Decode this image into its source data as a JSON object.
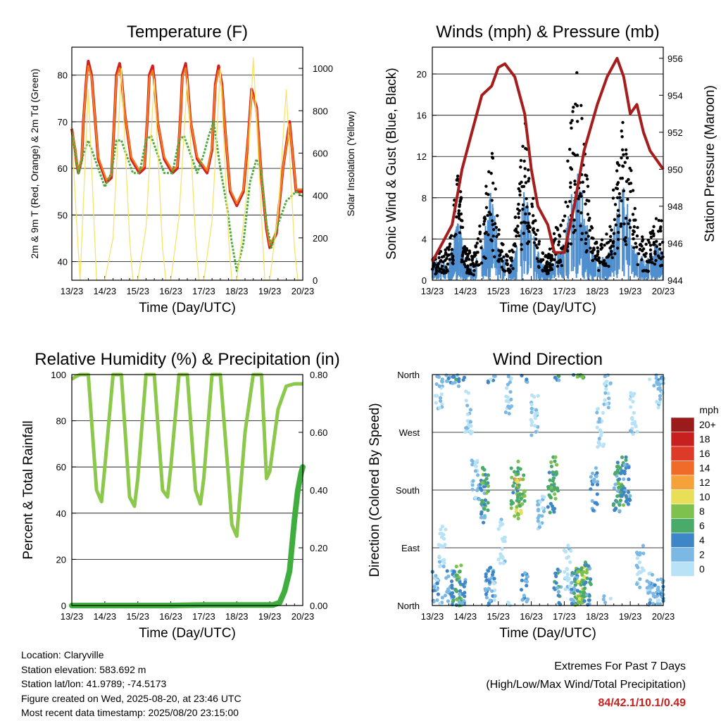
{
  "chart_data": [
    {
      "type": "line",
      "title": "Temperature (F)",
      "xlabel": "Time (Day/UTC)",
      "ylabel": "2m & 9m T (Red, Orange) & 2m Td (Green)",
      "ylabel_right": "Solar Insolation (Yellow)",
      "x_ticks": [
        "13/23",
        "14/23",
        "15/23",
        "16/23",
        "17/23",
        "18/23",
        "19/23",
        "20/23"
      ],
      "ylim": [
        36,
        86
      ],
      "y_ticks": [
        40,
        50,
        60,
        70,
        80
      ],
      "ylim_right": [
        0,
        1100
      ],
      "y_ticks_right": [
        0,
        200,
        400,
        600,
        800,
        1000
      ],
      "grid": true,
      "series": [
        {
          "color": "#d42020",
          "x": [
            0,
            0.05,
            0.1,
            0.15,
            0.2,
            0.3,
            0.35,
            0.45,
            0.5,
            0.6,
            0.8,
            1.05,
            1.2,
            1.3,
            1.35,
            1.45,
            1.5,
            1.6,
            1.8,
            2.05,
            2.2,
            2.3,
            2.35,
            2.45,
            2.5,
            2.6,
            2.8,
            3.05,
            3.2,
            3.3,
            3.35,
            3.45,
            3.5,
            3.6,
            3.8,
            4.1,
            4.25,
            4.35,
            4.45,
            4.55,
            4.65,
            4.8,
            5.0,
            5.2,
            5.35,
            5.45,
            5.6,
            5.75,
            5.9,
            6.0,
            6.2,
            6.4,
            6.6,
            6.8,
            7.0
          ],
          "values": [
            68.5,
            66,
            64,
            61,
            59,
            62,
            70,
            80,
            83,
            80,
            62,
            57,
            58,
            72,
            80,
            82.5,
            80,
            72,
            62,
            59,
            60,
            72,
            80,
            82,
            79,
            70,
            62,
            59,
            60,
            72,
            80,
            82.5,
            79,
            70,
            62,
            59,
            64,
            78,
            82,
            78,
            68,
            55,
            52,
            55,
            67,
            77,
            73,
            58,
            47,
            43,
            46,
            60,
            70,
            55,
            55
          ]
        },
        {
          "color": "#f07a20",
          "x": [
            0,
            0.05,
            0.1,
            0.15,
            0.2,
            0.3,
            0.35,
            0.45,
            0.5,
            0.6,
            0.8,
            1.05,
            1.2,
            1.3,
            1.35,
            1.45,
            1.5,
            1.6,
            1.8,
            2.05,
            2.2,
            2.3,
            2.35,
            2.45,
            2.5,
            2.6,
            2.8,
            3.05,
            3.2,
            3.3,
            3.35,
            3.45,
            3.5,
            3.6,
            3.8,
            4.1,
            4.25,
            4.35,
            4.45,
            4.55,
            4.65,
            4.8,
            5.0,
            5.2,
            5.35,
            5.45,
            5.6,
            5.75,
            5.9,
            6.0,
            6.2,
            6.4,
            6.6,
            6.8,
            7.0
          ],
          "values": [
            68.5,
            66.5,
            64.5,
            61.5,
            59.5,
            62.5,
            70,
            79.5,
            82,
            79.5,
            62.5,
            57.5,
            58.5,
            72,
            79.5,
            81.5,
            79.5,
            72,
            62.5,
            59.5,
            60.5,
            72,
            79.5,
            81,
            78.5,
            70,
            62.5,
            59.5,
            60.5,
            72,
            79.5,
            81.5,
            78.5,
            70,
            62.5,
            59.5,
            64.5,
            77.5,
            81,
            77.5,
            68,
            55.5,
            52.5,
            55.5,
            67,
            76.5,
            72.5,
            58,
            47.5,
            43.5,
            46.5,
            60,
            69.5,
            55.5,
            55.5
          ]
        },
        {
          "color": "#4aad3a",
          "x": [
            0,
            0.2,
            0.35,
            0.5,
            0.65,
            0.8,
            1.0,
            1.2,
            1.35,
            1.5,
            1.7,
            1.85,
            2.05,
            2.25,
            2.4,
            2.6,
            2.8,
            3.05,
            3.25,
            3.4,
            3.6,
            3.8,
            4.0,
            4.15,
            4.3,
            4.5,
            4.7,
            4.85,
            5.0,
            5.2,
            5.4,
            5.6,
            5.75,
            5.9,
            6.05,
            6.25,
            6.5,
            6.8,
            7.0
          ],
          "values": [
            68,
            59,
            63,
            66,
            63,
            60,
            56,
            59,
            66,
            66,
            62,
            59,
            59,
            66,
            67,
            63,
            59,
            59,
            66,
            67,
            63,
            59,
            63,
            67,
            70,
            60,
            52,
            44,
            38,
            44,
            57,
            62,
            59,
            48,
            43,
            48,
            53,
            55,
            54
          ]
        },
        {
          "color": "#f7e36a",
          "axis": "right",
          "x": [
            0,
            0.1,
            0.25,
            0.5,
            0.75,
            0.85,
            1.0,
            1.25,
            1.5,
            1.75,
            1.85,
            2.0,
            2.25,
            2.5,
            2.75,
            2.85,
            3.0,
            3.25,
            3.5,
            3.75,
            3.85,
            4.0,
            4.25,
            4.5,
            4.75,
            4.85,
            5.0,
            5.3,
            5.5,
            5.75,
            5.85,
            6.0,
            6.25,
            6.5,
            6.75,
            6.85,
            7.0
          ],
          "values": [
            700,
            400,
            0,
            900,
            0,
            0,
            0,
            200,
            1000,
            200,
            0,
            0,
            250,
            950,
            150,
            0,
            0,
            300,
            950,
            200,
            0,
            0,
            280,
            1000,
            200,
            0,
            0,
            400,
            1050,
            300,
            0,
            0,
            320,
            900,
            150,
            0,
            0
          ]
        }
      ]
    },
    {
      "type": "line",
      "title": "Winds (mph) & Pressure (mb)",
      "xlabel": "Time (Day/UTC)",
      "ylabel": "Sonic Wind & Gust (Blue, Black)",
      "ylabel_right": "Station Pressure (Maroon)",
      "x_ticks": [
        "13/23",
        "14/23",
        "15/23",
        "16/23",
        "17/23",
        "18/23",
        "19/23",
        "20/23"
      ],
      "ylim": [
        0,
        22.6
      ],
      "y_ticks": [
        0,
        4,
        8,
        12,
        16,
        20
      ],
      "ylim_right": [
        944,
        956.6
      ],
      "y_ticks_right": [
        944,
        946,
        948,
        950,
        952,
        954,
        956
      ],
      "grid": true,
      "series": [
        {
          "color": "#000000",
          "type": "scatter",
          "x": [
            0,
            0.5,
            0.8,
            1.0,
            1.25,
            1.5,
            1.8,
            2.0,
            2.3,
            2.5,
            2.8,
            3.0,
            3.3,
            3.5,
            3.8,
            4.0,
            4.2,
            4.4,
            4.6,
            4.8,
            5.0,
            5.3,
            5.5,
            5.8,
            6.0,
            6.3,
            6.5,
            6.8,
            7.0
          ],
          "values": [
            2,
            3,
            10,
            3,
            2,
            6,
            12,
            5,
            2,
            5,
            14,
            8,
            3,
            2,
            5,
            6,
            14,
            18,
            12,
            5,
            3,
            4,
            8,
            14,
            10,
            4,
            3,
            6,
            5
          ]
        },
        {
          "color": "#4f8fcf",
          "x": [
            0,
            0.5,
            0.8,
            1.0,
            1.25,
            1.5,
            1.8,
            2.0,
            2.3,
            2.5,
            2.8,
            3.0,
            3.3,
            3.5,
            3.8,
            4.0,
            4.2,
            4.4,
            4.6,
            4.8,
            5.0,
            5.3,
            5.5,
            5.8,
            6.0,
            6.3,
            6.5,
            6.8,
            7.0
          ],
          "values": [
            1.5,
            1.5,
            5,
            1.5,
            1,
            3,
            7,
            3,
            1,
            2,
            8,
            4,
            1.5,
            1,
            2.5,
            3,
            7,
            9,
            6,
            2.5,
            1.5,
            2,
            4,
            8,
            5,
            2,
            1.5,
            3,
            2
          ]
        },
        {
          "color": "#a51d1d",
          "axis": "right",
          "x": [
            0,
            0.3,
            0.6,
            0.9,
            1.2,
            1.5,
            1.8,
            2.0,
            2.2,
            2.5,
            2.8,
            3.0,
            3.2,
            3.5,
            3.7,
            4.0,
            4.3,
            4.6,
            5.0,
            5.3,
            5.6,
            5.8,
            6.0,
            6.2,
            6.4,
            6.6,
            6.8,
            7.0
          ],
          "values": [
            945,
            946,
            947,
            950,
            952,
            954,
            954.5,
            955.5,
            955.7,
            955,
            953,
            950,
            948,
            947,
            945.5,
            945.5,
            948,
            951,
            953.5,
            955,
            956,
            955,
            953,
            953.5,
            952,
            951,
            950.5,
            950
          ]
        }
      ]
    },
    {
      "type": "line",
      "title": "Relative Humidity (%) & Precipitation (in)",
      "xlabel": "Time (Day/UTC)",
      "ylabel": "Percent & Total Rainfall",
      "x_ticks": [
        "13/23",
        "14/23",
        "15/23",
        "16/23",
        "17/23",
        "18/23",
        "19/23",
        "20/23"
      ],
      "ylim": [
        0,
        100
      ],
      "y_ticks": [
        0,
        20,
        40,
        60,
        80,
        100
      ],
      "ylim_right": [
        0,
        0.8
      ],
      "y_ticks_right": [
        "0.00",
        "0.20",
        "0.40",
        "0.60",
        "0.80"
      ],
      "grid": true,
      "series": [
        {
          "color": "#8cc84b",
          "x": [
            0,
            0.1,
            0.25,
            0.5,
            0.75,
            0.9,
            1.0,
            1.25,
            1.5,
            1.75,
            1.9,
            2.0,
            2.25,
            2.5,
            2.75,
            2.9,
            3.0,
            3.25,
            3.5,
            3.75,
            3.9,
            4.0,
            4.25,
            4.5,
            4.75,
            4.85,
            5.0,
            5.25,
            5.5,
            5.75,
            5.9,
            6.0,
            6.25,
            6.5,
            6.75,
            7.0
          ],
          "values": [
            98,
            99,
            100,
            100,
            50,
            45,
            60,
            100,
            100,
            47,
            43,
            55,
            100,
            100,
            50,
            47,
            60,
            100,
            100,
            50,
            44,
            55,
            100,
            100,
            55,
            35,
            30,
            75,
            100,
            100,
            55,
            58,
            85,
            95,
            96,
            96
          ]
        },
        {
          "color": "#3fae3f",
          "axis": "right",
          "x": [
            0,
            1,
            2,
            3,
            4,
            5,
            6.1,
            6.3,
            6.45,
            6.6,
            6.75,
            6.85,
            6.95,
            7.0
          ],
          "values": [
            0,
            0,
            0,
            0,
            0.002,
            0.002,
            0.002,
            0.01,
            0.05,
            0.12,
            0.3,
            0.4,
            0.46,
            0.48
          ]
        }
      ]
    },
    {
      "type": "scatter",
      "title": "Wind Direction",
      "xlabel": "Time (Day/UTC)",
      "ylabel": "Direction (Colored By Speed)",
      "x_ticks": [
        "13/23",
        "14/23",
        "15/23",
        "16/23",
        "17/23",
        "18/23",
        "19/23",
        "20/23"
      ],
      "y_ticks": [
        "North",
        "East",
        "South",
        "West",
        "North"
      ],
      "ylim": [
        0,
        360
      ],
      "grid": true,
      "legend": {
        "title": "mph",
        "placement": "right",
        "labels": [
          "20+",
          "18",
          "16",
          "14",
          "12",
          "10",
          "8",
          "6",
          "4",
          "2",
          "0"
        ],
        "colors": [
          "#9b1b1b",
          "#c8201e",
          "#de3a2a",
          "#f06a2a",
          "#f5a23a",
          "#e8de58",
          "#7fc14f",
          "#4aaa6a",
          "#3f86c6",
          "#7bb8e4",
          "#b8e2f6"
        ]
      },
      "x": [
        0.1,
        0.2,
        0.3,
        0.5,
        0.7,
        0.8,
        0.9,
        1.1,
        1.3,
        1.5,
        1.6,
        1.7,
        1.8,
        2.1,
        2.3,
        2.5,
        2.6,
        2.7,
        2.8,
        3.1,
        3.3,
        3.6,
        3.7,
        3.8,
        4.1,
        4.3,
        4.4,
        4.5,
        4.6,
        4.7,
        4.9,
        5.1,
        5.3,
        5.6,
        5.7,
        5.8,
        5.9,
        6.1,
        6.3,
        6.6,
        6.8,
        6.9,
        7.0
      ],
      "values": [
        30,
        340,
        90,
        20,
        20,
        30,
        15,
        300,
        200,
        160,
        180,
        35,
        20,
        100,
        330,
        180,
        170,
        190,
        20,
        300,
        150,
        180,
        200,
        25,
        60,
        30,
        30,
        25,
        30,
        35,
        180,
        280,
        340,
        180,
        190,
        200,
        190,
        300,
        60,
        20,
        10,
        340,
        10
      ],
      "speeds": [
        2,
        1,
        0,
        3,
        4,
        6,
        3,
        0,
        1,
        4,
        6,
        3,
        2,
        0,
        1,
        6,
        10,
        7,
        3,
        0,
        1,
        5,
        7,
        4,
        0,
        3,
        6,
        8,
        7,
        4,
        3,
        0,
        1,
        4,
        6,
        5,
        3,
        0,
        1,
        2,
        3,
        1,
        2
      ]
    }
  ],
  "station": {
    "location": "Location: Claryville",
    "elevation": "Station elevation: 583.692 m",
    "latlon": "Station lat/lon: 41.9789; -74.5173",
    "created": "Figure created on Wed, 2025-08-20, at 23:46 UTC",
    "recent": "Most recent data timestamp: 2025/08/20 23:15:00"
  },
  "extremes": {
    "title": "Extremes For Past 7 Days",
    "subtitle": "(High/Low/Max Wind/Total Precipitation)",
    "values": "84/42.1/10.1/0.49"
  }
}
